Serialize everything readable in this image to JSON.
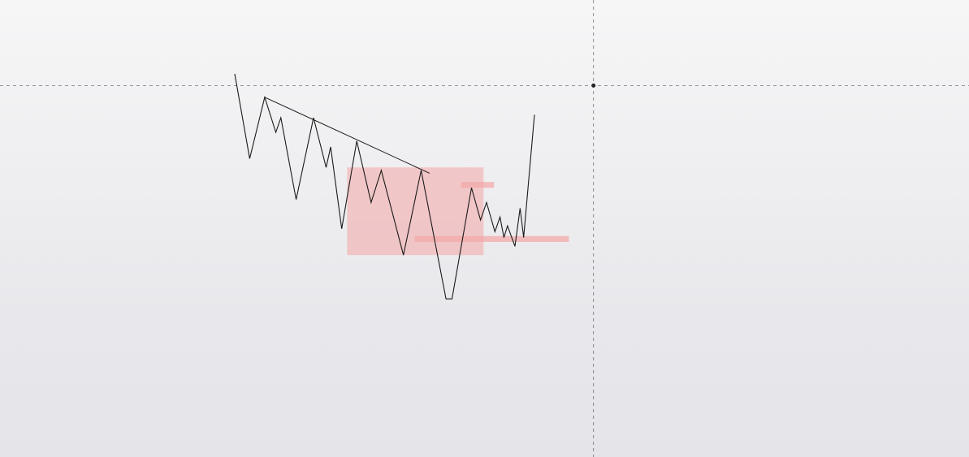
{
  "chart_data": {
    "type": "line",
    "title": "",
    "xlabel": "",
    "ylabel": "",
    "grid": false,
    "legend": false,
    "line_color": "#1a1a1a",
    "zone_color": "#f4a6a6",
    "crosshair_color": "#555555",
    "ylim": [
      0,
      100
    ],
    "xlim": [
      0,
      100
    ],
    "series": [
      {
        "values": [
          {
            "x": 0,
            "y": 95
          },
          {
            "x": 5,
            "y": 66
          },
          {
            "x": 10,
            "y": 87
          },
          {
            "x": 13.7,
            "y": 75
          },
          {
            "x": 15.4,
            "y": 80
          },
          {
            "x": 20.5,
            "y": 52
          },
          {
            "x": 26.3,
            "y": 80
          },
          {
            "x": 30.5,
            "y": 63
          },
          {
            "x": 32,
            "y": 70
          },
          {
            "x": 35.7,
            "y": 42
          },
          {
            "x": 40.7,
            "y": 72
          },
          {
            "x": 45.5,
            "y": 51
          },
          {
            "x": 48.9,
            "y": 62
          },
          {
            "x": 56.3,
            "y": 33
          },
          {
            "x": 62.2,
            "y": 62
          },
          {
            "x": 70.5,
            "y": 18
          },
          {
            "x": 72.5,
            "y": 18
          },
          {
            "x": 79,
            "y": 56
          },
          {
            "x": 82,
            "y": 45
          },
          {
            "x": 84,
            "y": 51
          },
          {
            "x": 86.8,
            "y": 41
          },
          {
            "x": 88.5,
            "y": 46
          },
          {
            "x": 89.8,
            "y": 39
          },
          {
            "x": 91,
            "y": 43
          },
          {
            "x": 93.5,
            "y": 36
          },
          {
            "x": 95.2,
            "y": 49
          },
          {
            "x": 96.4,
            "y": 39
          },
          {
            "x": 100,
            "y": 81
          }
        ]
      }
    ],
    "trendline": {
      "x1": 10,
      "y1": 87,
      "x2": 65,
      "y2": 61
    },
    "zones": [
      {
        "x1": 37.5,
        "x2": 83,
        "y1": 33,
        "y2": 63
      },
      {
        "x1": 75.5,
        "x2": 86.5,
        "y1": 58,
        "y2": 56
      },
      {
        "x1": 60,
        "x2": 111.5,
        "y1": 37.5,
        "y2": 39.5
      }
    ],
    "crosshair": {
      "x": 119.7,
      "y": 91
    }
  }
}
